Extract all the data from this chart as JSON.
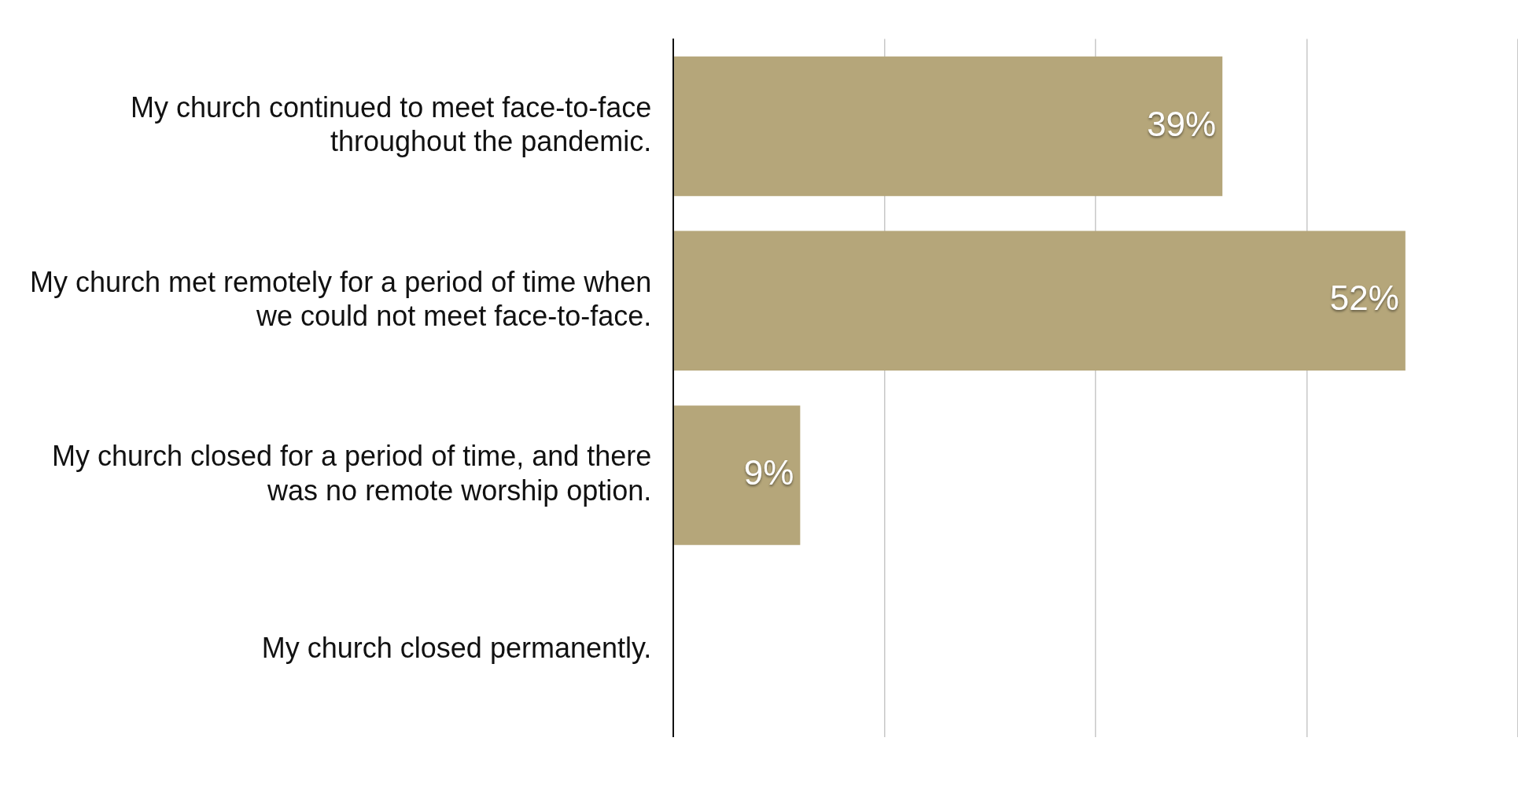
{
  "chart_data": {
    "type": "bar",
    "orientation": "horizontal",
    "categories": [
      "My church continued to meet face-to-face throughout the pandemic.",
      "My church met remotely for a period of time when we could not meet face-to-face.",
      "My church closed for a period of time, and there was no remote worship option.",
      "My church closed permanently."
    ],
    "values": [
      39,
      52,
      9,
      0
    ],
    "value_labels": [
      "39%",
      "52%",
      "9%",
      null
    ],
    "color": "#b5a67a",
    "xlim": [
      0,
      60
    ],
    "xticks": [
      {
        "value": 0,
        "label": null
      },
      {
        "value": 15,
        "label": null
      },
      {
        "value": 30,
        "label": null
      },
      {
        "value": 45,
        "label": null
      },
      {
        "value": 60,
        "label": null
      }
    ],
    "grid": "x",
    "legend": false,
    "tick_labels": "y"
  }
}
